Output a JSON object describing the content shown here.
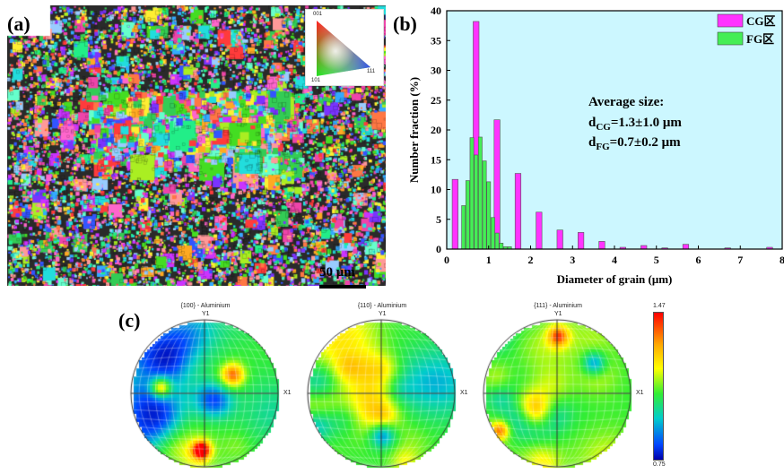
{
  "panels": {
    "a": {
      "label": "(a)",
      "scale_bar": "50 μm",
      "ipf_key": {
        "top": "001",
        "left": "101",
        "right": "111"
      }
    },
    "b": {
      "label": "(b)",
      "annotation": {
        "line1": "Average size:",
        "line2_main": "d",
        "line2_sub": "CG",
        "line2_rest": "=1.3±1.0 μm",
        "line3_main": "d",
        "line3_sub": "FG",
        "line3_rest": "=0.7±0.2 μm"
      }
    },
    "c": {
      "label": "(c)",
      "pole_figures": [
        {
          "title": "{100} - Aluminium",
          "y_axis": "Y1",
          "x_axis": "X1"
        },
        {
          "title": "{110} - Aluminium",
          "y_axis": "Y1",
          "x_axis": "X1"
        },
        {
          "title": "{111} - Aluminium",
          "y_axis": "Y1",
          "x_axis": "X1"
        }
      ],
      "colorbar": {
        "max": "1.47",
        "min": "0.75"
      }
    }
  },
  "colors": {
    "cg_bar": "#ff33ff",
    "fg_bar": "#44ee55",
    "plot_bg": "#ccf7ff"
  },
  "chart_data": {
    "type": "bar",
    "xlabel": "Diameter of grain (μm)",
    "ylabel": "Number fraction (%)",
    "xlim": [
      0,
      8
    ],
    "ylim": [
      0,
      40
    ],
    "xticks": [
      "0",
      "1",
      "2",
      "3",
      "4",
      "5",
      "6",
      "7",
      "8"
    ],
    "yticks": [
      "0",
      "5",
      "10",
      "15",
      "20",
      "25",
      "30",
      "35",
      "40"
    ],
    "legend_position": "top-right",
    "series": [
      {
        "name": "CG区",
        "x": [
          0.2,
          0.7,
          1.2,
          1.7,
          2.2,
          2.7,
          3.2,
          3.7,
          4.2,
          4.7,
          5.2,
          5.7,
          6.7,
          7.7
        ],
        "values": [
          11.7,
          38.2,
          21.7,
          12.7,
          6.2,
          3.2,
          2.8,
          1.3,
          0.3,
          0.6,
          0.2,
          0.8,
          0.2,
          0.3
        ]
      },
      {
        "name": "FG区",
        "x": [
          0.4,
          0.5,
          0.6,
          0.7,
          0.8,
          0.9,
          1.0,
          1.1,
          1.2,
          1.3,
          1.4,
          1.5
        ],
        "values": [
          7.3,
          11.5,
          18.7,
          15.8,
          18.8,
          14.8,
          11.3,
          5.3,
          2.7,
          1.0,
          0.4,
          0.4
        ]
      }
    ]
  }
}
